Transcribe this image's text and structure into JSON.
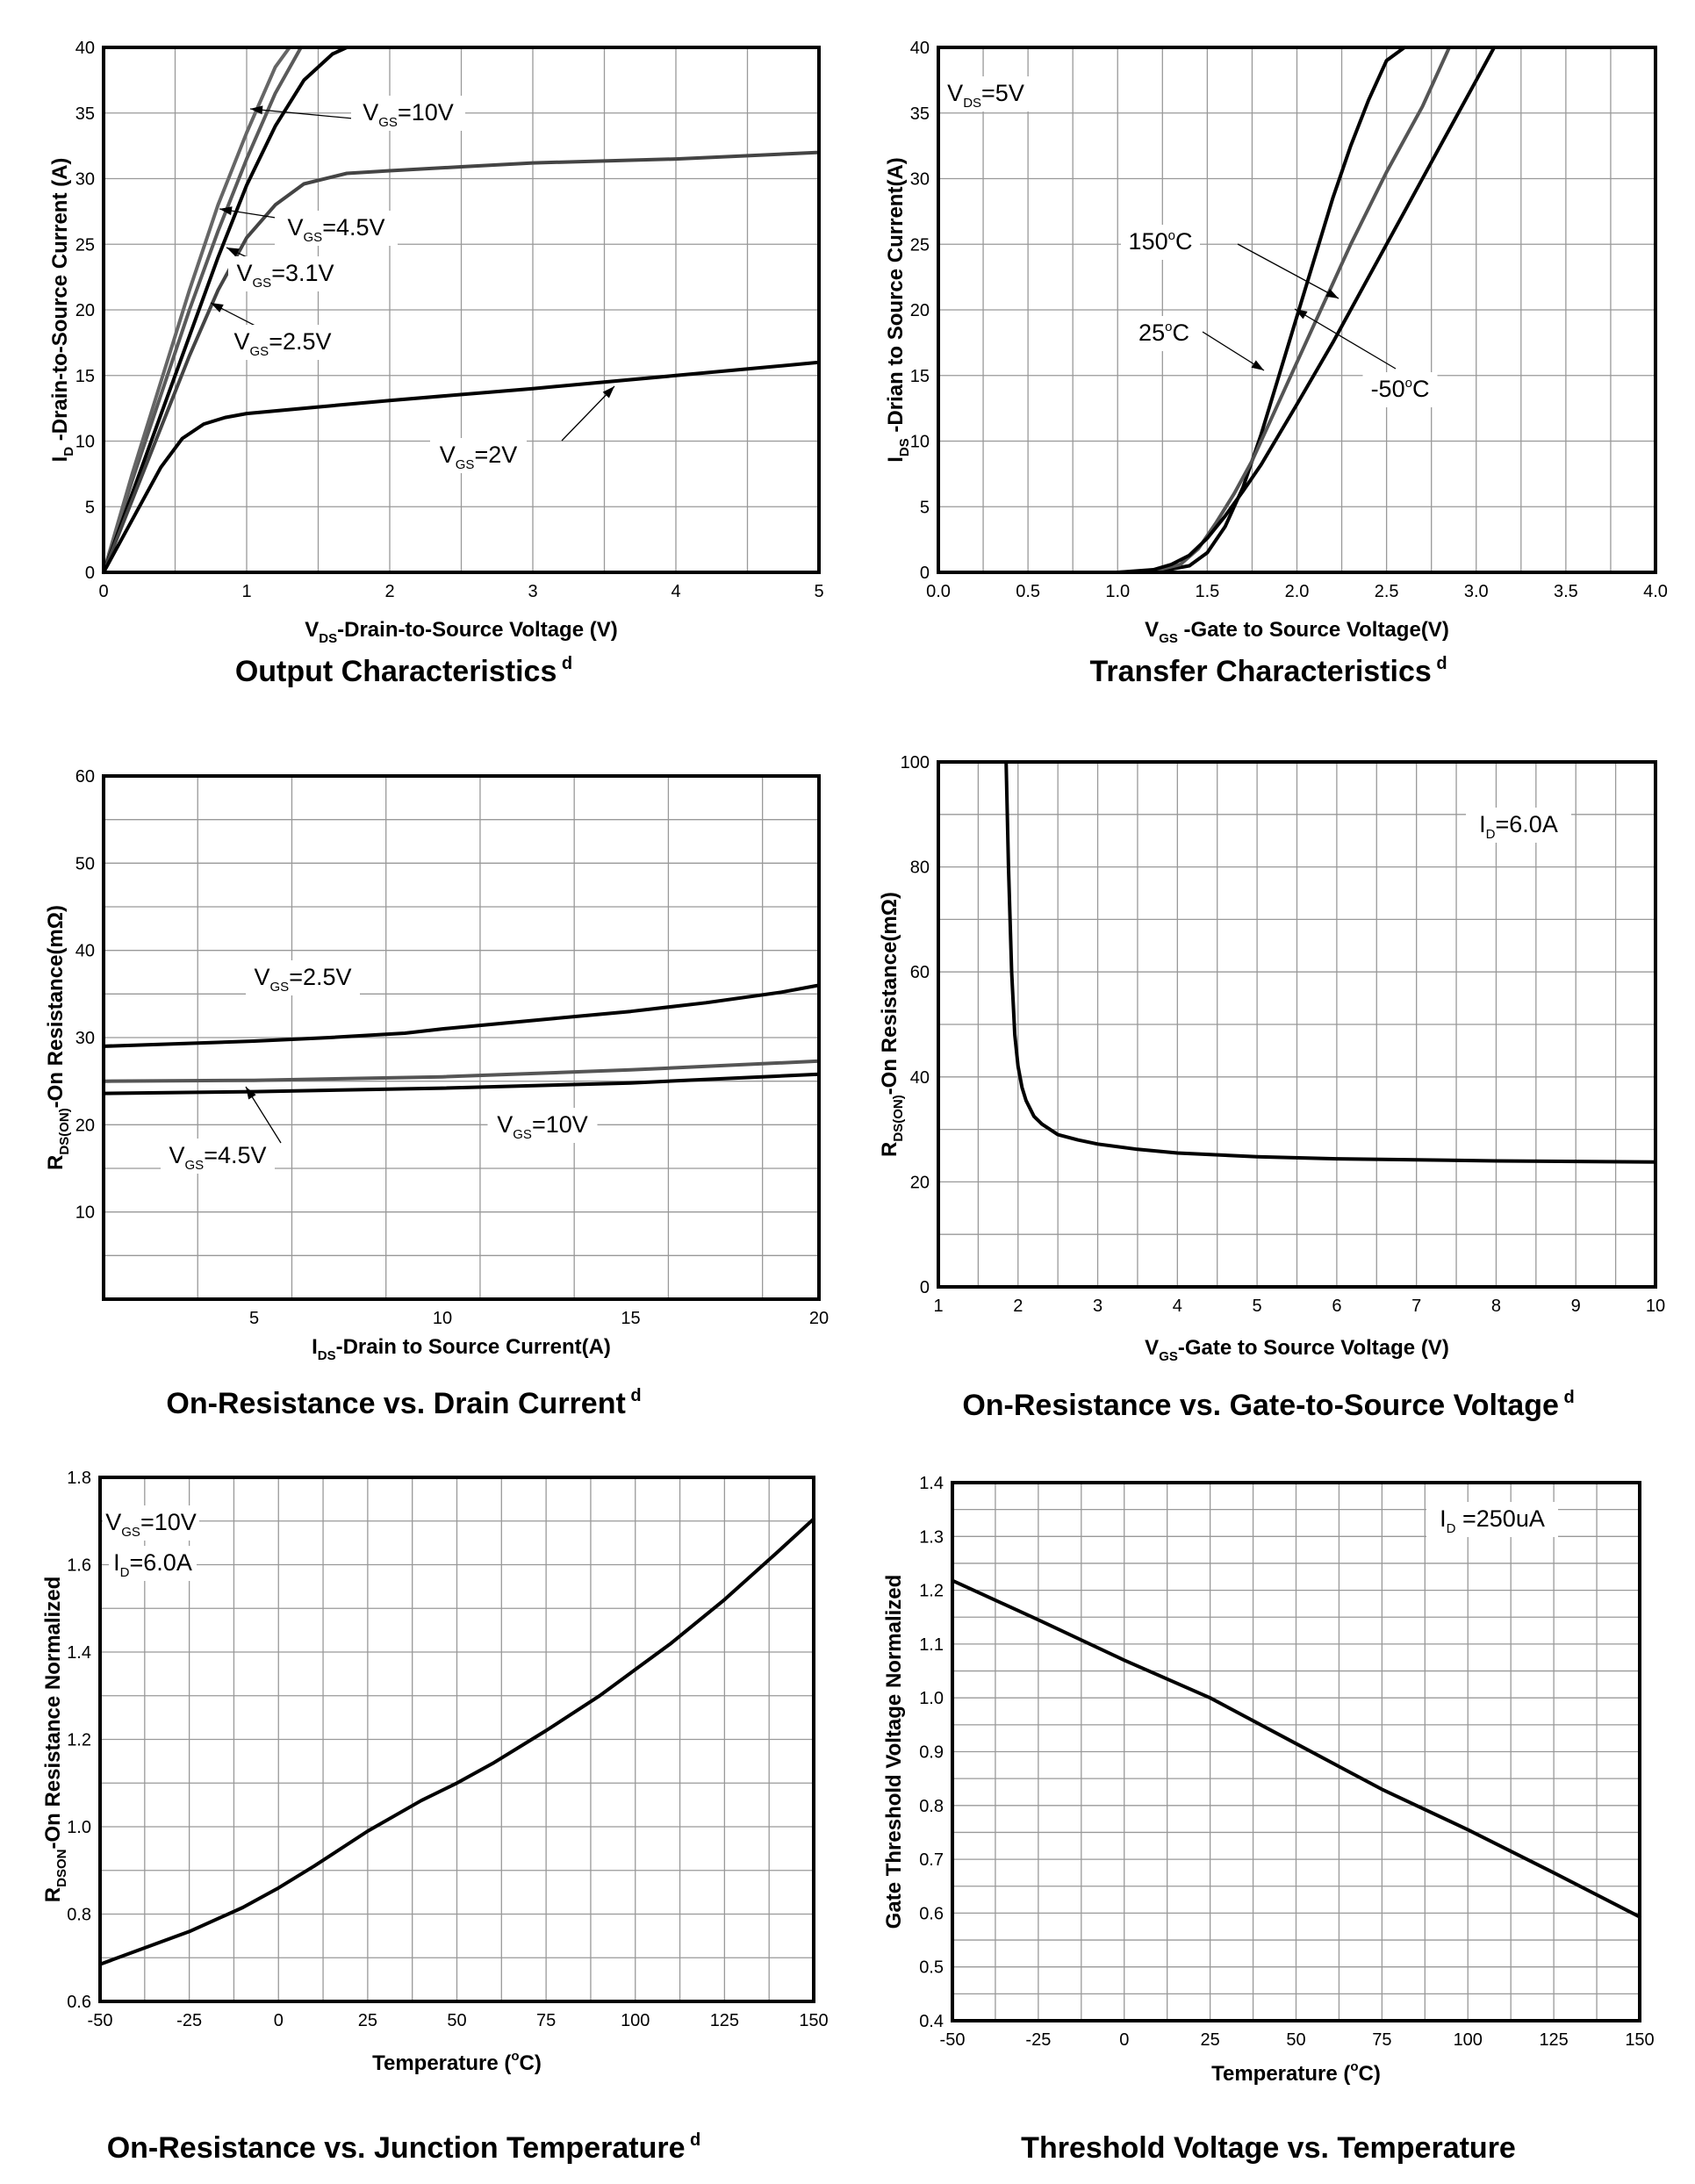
{
  "chart_data": [
    {
      "id": "c1",
      "type": "line",
      "title": "Output Characteristics",
      "title_sup": "d",
      "xlabel": {
        "base": "V",
        "sub": "DS",
        "rest": "-Drain-to-Source Voltage (V)"
      },
      "ylabel": {
        "base": "I",
        "sub": "D",
        "rest": " -Drain-to-Source Current (A)"
      },
      "xlim": [
        0,
        5
      ],
      "ylim": [
        0,
        40
      ],
      "xticks": [
        0,
        1,
        2,
        3,
        4,
        5
      ],
      "yticks": [
        0,
        5,
        10,
        15,
        20,
        25,
        30,
        35,
        40
      ],
      "x_minor": 0.5,
      "y_minor": 5,
      "series": [
        {
          "name": "VGS=10V",
          "color": "#5a5a5a",
          "x": [
            0,
            0.2,
            0.4,
            0.6,
            0.8,
            1.0,
            1.2,
            1.38
          ],
          "y": [
            0,
            7,
            13.5,
            20,
            26,
            31.5,
            36.5,
            40
          ]
        },
        {
          "name": "VGS=4.5V",
          "color": "#666666",
          "x": [
            0,
            0.2,
            0.4,
            0.6,
            0.8,
            1.0,
            1.2,
            1.3
          ],
          "y": [
            0,
            7.5,
            14.5,
            21.5,
            28,
            33.5,
            38.5,
            40
          ]
        },
        {
          "name": "VGS=3.1V",
          "color": "#000000",
          "x": [
            0,
            0.2,
            0.4,
            0.6,
            0.8,
            1.0,
            1.2,
            1.4,
            1.6,
            1.7
          ],
          "y": [
            0,
            6,
            12,
            18,
            24,
            29.5,
            34,
            37.5,
            39.5,
            40
          ]
        },
        {
          "name": "VGS=2.5V",
          "color": "#444444",
          "x": [
            0,
            0.2,
            0.4,
            0.6,
            0.8,
            1.0,
            1.2,
            1.4,
            1.7,
            2.0,
            2.5,
            3.0,
            4.0,
            5.0
          ],
          "y": [
            0,
            5.5,
            11,
            16.5,
            21.5,
            25.5,
            28,
            29.6,
            30.4,
            30.6,
            30.9,
            31.2,
            31.5,
            32
          ]
        },
        {
          "name": "VGS=2V",
          "color": "#000000",
          "x": [
            0,
            0.2,
            0.4,
            0.55,
            0.7,
            0.85,
            1.0,
            1.5,
            2.0,
            3.0,
            4.0,
            5.0
          ],
          "y": [
            0,
            4,
            8,
            10.2,
            11.3,
            11.8,
            12.1,
            12.6,
            13.1,
            14,
            15,
            16
          ]
        }
      ],
      "annotations": [
        {
          "base": "V",
          "sub": "GS",
          "rest": "=10V"
        },
        {
          "base": "V",
          "sub": "GS",
          "rest": "=4.5V"
        },
        {
          "base": "V",
          "sub": "GS",
          "rest": "=3.1V"
        },
        {
          "base": "V",
          "sub": "GS",
          "rest": "=2.5V"
        },
        {
          "base": "V",
          "sub": "GS",
          "rest": "=2V"
        }
      ]
    },
    {
      "id": "c2",
      "type": "line",
      "title": "Transfer Characteristics",
      "title_sup": "d",
      "xlabel": {
        "base": "V",
        "sub": "GS",
        "rest": " -Gate to Source Voltage(V)"
      },
      "ylabel": {
        "base": "I",
        "sub": "DS",
        "rest": " -Drian to Source Current(A)"
      },
      "xlim": [
        0,
        4
      ],
      "ylim": [
        0,
        40
      ],
      "xticks": [
        0,
        0.5,
        1.0,
        1.5,
        2.0,
        2.5,
        3.0,
        3.5,
        4.0
      ],
      "xtick_labels": [
        "0.0",
        "0.5",
        "1.0",
        "1.5",
        "2.0",
        "2.5",
        "3.0",
        "3.5",
        "4.0"
      ],
      "yticks": [
        0,
        5,
        10,
        15,
        20,
        25,
        30,
        35,
        40
      ],
      "x_minor": 0.25,
      "y_minor": 5,
      "series": [
        {
          "name": "25°C",
          "color": "#000000",
          "x": [
            1.0,
            1.2,
            1.4,
            1.5,
            1.6,
            1.7,
            1.8,
            1.9,
            2.0,
            2.1,
            2.2,
            2.3,
            2.4,
            2.5,
            2.6
          ],
          "y": [
            0,
            0,
            0.5,
            1.5,
            3.5,
            6.5,
            10.5,
            15,
            19.5,
            24,
            28.5,
            32.5,
            36,
            39,
            41
          ]
        },
        {
          "name": "150°C",
          "color": "#555555",
          "x": [
            1.0,
            1.2,
            1.35,
            1.45,
            1.55,
            1.65,
            1.75,
            1.85,
            1.95,
            2.1,
            2.3,
            2.5,
            2.7,
            2.85
          ],
          "y": [
            0,
            0.1,
            0.6,
            1.8,
            3.8,
            6,
            8.5,
            11.5,
            14.5,
            19,
            25,
            30.5,
            35.5,
            40
          ]
        },
        {
          "name": "-50°C",
          "color": "#000000",
          "x": [
            1.0,
            1.2,
            1.3,
            1.4,
            1.5,
            1.6,
            1.7,
            1.8,
            1.9,
            2.0,
            2.2,
            2.4,
            2.6,
            2.8,
            3.0,
            3.1
          ],
          "y": [
            0,
            0.2,
            0.6,
            1.3,
            2.6,
            4.3,
            6.2,
            8.2,
            10.5,
            12.8,
            17.5,
            22.5,
            27.5,
            32.5,
            37.5,
            40
          ]
        }
      ],
      "annotations": [
        {
          "base": "V",
          "sub": "DS",
          "rest": "=5V"
        },
        {
          "text": "150",
          "sup": "o",
          "rest": "C"
        },
        {
          "text": "25",
          "sup": "o",
          "rest": "C"
        },
        {
          "text": "-50",
          "sup": "o",
          "rest": "C"
        }
      ]
    },
    {
      "id": "c3",
      "type": "line",
      "title": "On-Resistance vs. Drain Current",
      "title_sup": "d",
      "xlabel": {
        "base": "I",
        "sub": "DS",
        "rest": "-Drain to Source Current(A)"
      },
      "ylabel": {
        "base": "R",
        "sub": "DS(ON)",
        "rest": "-On Resistance(mΩ)"
      },
      "xlim": [
        1,
        20
      ],
      "ylim": [
        0,
        60
      ],
      "xticks": [
        5,
        10,
        15,
        20
      ],
      "yticks": [
        10,
        20,
        30,
        40,
        50,
        60
      ],
      "x_minor": 2.5,
      "y_minor": 5,
      "series": [
        {
          "name": "VGS=2.5V",
          "color": "#000000",
          "x": [
            1,
            3,
            5,
            7,
            9,
            10,
            11,
            13,
            15,
            17,
            19,
            20
          ],
          "y": [
            29,
            29.3,
            29.6,
            30,
            30.5,
            31,
            31.4,
            32.2,
            33,
            34,
            35.2,
            36
          ]
        },
        {
          "name": "VGS=4.5V",
          "color": "#555555",
          "x": [
            1,
            5,
            10,
            15,
            20
          ],
          "y": [
            25,
            25.1,
            25.5,
            26.3,
            27.3
          ]
        },
        {
          "name": "VGS=10V",
          "color": "#000000",
          "x": [
            1,
            5,
            10,
            15,
            20
          ],
          "y": [
            23.6,
            23.8,
            24.2,
            24.8,
            25.8
          ]
        }
      ],
      "annotations": [
        {
          "base": "V",
          "sub": "GS",
          "rest": "=2.5V"
        },
        {
          "base": "V",
          "sub": "GS",
          "rest": "=10V"
        },
        {
          "base": "V",
          "sub": "GS",
          "rest": "=4.5V"
        }
      ]
    },
    {
      "id": "c4",
      "type": "line",
      "title": "On-Resistance vs. Gate-to-Source Voltage",
      "title_sup": "d",
      "xlabel": {
        "base": "V",
        "sub": "GS",
        "rest": "-Gate to Source Voltage (V)"
      },
      "ylabel": {
        "base": "R",
        "sub": "DS(ON)",
        "rest": "-On Resistance(mΩ)"
      },
      "xlim": [
        1,
        10
      ],
      "ylim": [
        0,
        100
      ],
      "xticks": [
        1,
        2,
        3,
        4,
        5,
        6,
        7,
        8,
        9,
        10
      ],
      "yticks": [
        0,
        20,
        40,
        60,
        80,
        100
      ],
      "x_minor": 0.5,
      "y_minor": 10,
      "series": [
        {
          "name": "ID=6.0A",
          "color": "#000000",
          "x": [
            1.85,
            1.88,
            1.92,
            1.96,
            2.0,
            2.05,
            2.1,
            2.2,
            2.3,
            2.5,
            2.75,
            3.0,
            3.5,
            4.0,
            5.0,
            6.0,
            7.0,
            8.0,
            9.0,
            10.0
          ],
          "y": [
            100,
            80,
            60,
            48,
            42,
            38,
            35.5,
            32.5,
            31,
            29,
            28,
            27.2,
            26.2,
            25.5,
            24.8,
            24.4,
            24.2,
            24.0,
            23.9,
            23.8
          ]
        }
      ],
      "annotations": [
        {
          "base": "I",
          "sub": "D",
          "rest": "=6.0A"
        }
      ]
    },
    {
      "id": "c5",
      "type": "line",
      "title": "On-Resistance vs. Junction Temperature",
      "title_sup": "d",
      "xlabel": {
        "base": "Temperature (",
        "sup": "o",
        "rest": "C)"
      },
      "ylabel": {
        "base": "R",
        "sub": "DSON",
        "rest": "-On Resistance Normalized"
      },
      "xlim": [
        -50,
        150
      ],
      "ylim": [
        0.6,
        1.8
      ],
      "xticks": [
        -50,
        -25,
        0,
        25,
        50,
        75,
        100,
        125,
        150
      ],
      "yticks": [
        0.6,
        0.8,
        1.0,
        1.2,
        1.4,
        1.6,
        1.8
      ],
      "ytick_labels": [
        "0.6",
        "0.8",
        "1.0",
        "1.2",
        "1.4",
        "1.6",
        "1.8"
      ],
      "x_minor": 12.5,
      "y_minor": 0.1,
      "series": [
        {
          "name": "VGS=10V ID=6.0A",
          "color": "#000000",
          "x": [
            -50,
            -25,
            -10,
            0,
            10,
            25,
            40,
            50,
            60,
            75,
            90,
            100,
            110,
            125,
            140,
            150
          ],
          "y": [
            0.685,
            0.76,
            0.815,
            0.86,
            0.91,
            0.99,
            1.06,
            1.1,
            1.145,
            1.22,
            1.3,
            1.36,
            1.42,
            1.52,
            1.63,
            1.705
          ]
        }
      ],
      "annotations": [
        {
          "base": "V",
          "sub": "GS",
          "rest": "=10V"
        },
        {
          "base": "I",
          "sub": "D",
          "rest": "=6.0A"
        }
      ]
    },
    {
      "id": "c6",
      "type": "line",
      "title": "Threshold Voltage vs. Temperature",
      "title_sup": "",
      "xlabel": {
        "base": "Temperature (",
        "sup": "o",
        "rest": "C)"
      },
      "ylabel": {
        "base": "Gate Threshold Voltage  Normalized",
        "sub": "",
        "rest": ""
      },
      "xlim": [
        -50,
        150
      ],
      "ylim": [
        0.4,
        1.4
      ],
      "xticks": [
        -50,
        -25,
        0,
        25,
        50,
        75,
        100,
        125,
        150
      ],
      "yticks": [
        0.4,
        0.5,
        0.6,
        0.7,
        0.8,
        0.9,
        1.0,
        1.1,
        1.2,
        1.3,
        1.4
      ],
      "ytick_labels": [
        "0.4",
        "0.5",
        "0.6",
        "0.7",
        "0.8",
        "0.9",
        "1.0",
        "1.1",
        "1.2",
        "1.3",
        "1.4"
      ],
      "x_minor": 12.5,
      "y_minor": 0.05,
      "series": [
        {
          "name": "ID=250uA",
          "color": "#000000",
          "x": [
            -50,
            -25,
            0,
            25,
            50,
            75,
            100,
            125,
            150
          ],
          "y": [
            1.218,
            1.145,
            1.07,
            1.0,
            0.915,
            0.83,
            0.755,
            0.675,
            0.593
          ]
        }
      ],
      "annotations": [
        {
          "base": "I",
          "sub": "D",
          "rest": " =250uA"
        }
      ]
    }
  ]
}
